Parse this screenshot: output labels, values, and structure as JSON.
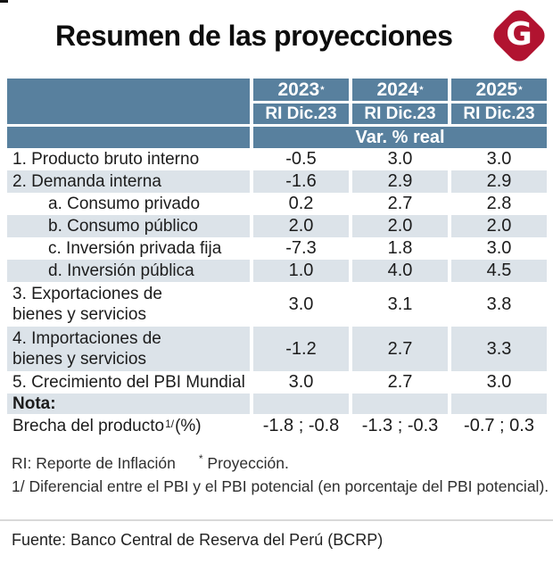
{
  "title": "Resumen de las proyecciones",
  "logo": {
    "letter": "G"
  },
  "colors": {
    "header_bg": "#58809E",
    "row_alt_bg": "#DCE3E9",
    "logo_red": "#B11330",
    "header_text": "#FFFFFF"
  },
  "table": {
    "columns": [
      {
        "year": "2023",
        "mark": "*",
        "edition": "RI Dic.23"
      },
      {
        "year": "2024",
        "mark": "*",
        "edition": "RI Dic.23"
      },
      {
        "year": "2025",
        "mark": "*",
        "edition": "RI Dic.23"
      }
    ],
    "unit_row": "Var. % real",
    "rows": [
      {
        "label": "1. Producto bruto interno",
        "values": [
          "-0.5",
          "3.0",
          "3.0"
        ],
        "alt": false
      },
      {
        "label": "2. Demanda interna",
        "values": [
          "-1.6",
          "2.9",
          "2.9"
        ],
        "alt": true
      },
      {
        "label": "a. Consumo privado",
        "values": [
          "0.2",
          "2.7",
          "2.8"
        ],
        "alt": false,
        "indent": true
      },
      {
        "label": "b. Consumo público",
        "values": [
          "2.0",
          "2.0",
          "2.0"
        ],
        "alt": true,
        "indent": true
      },
      {
        "label": "c. Inversión privada fija",
        "values": [
          "-7.3",
          "1.8",
          "3.0"
        ],
        "alt": false,
        "indent": true
      },
      {
        "label": "d. Inversión pública",
        "values": [
          "1.0",
          "4.0",
          "4.5"
        ],
        "alt": true,
        "indent": true
      },
      {
        "label": "3. Exportaciones de\nbienes y servicios",
        "values": [
          "3.0",
          "3.1",
          "3.8"
        ],
        "alt": false,
        "tall": true
      },
      {
        "label": "4. Importaciones de\nbienes y servicios",
        "values": [
          "-1.2",
          "2.7",
          "3.3"
        ],
        "alt": true,
        "tall": true
      },
      {
        "label": "5. Crecimiento del PBI Mundial",
        "values": [
          "3.0",
          "2.7",
          "3.0"
        ],
        "alt": false
      },
      {
        "label": "Nota:",
        "values": [
          "",
          "",
          ""
        ],
        "alt": true,
        "bold": true
      },
      {
        "label": "Brecha del producto",
        "label_sup": "1/",
        "label_after": " (%)",
        "values": [
          "-1.8 ; -0.8",
          "-1.3 ; -0.3",
          "-0.7 ; 0.3"
        ],
        "alt": false
      }
    ]
  },
  "footnotes": {
    "ri": "RI: Reporte de Inflación",
    "projection_mark": "*",
    "projection_text": "Proyección.",
    "gap_note": "1/ Diferencial entre el PBI y el PBI potencial (en porcentaje del PBI potencial)."
  },
  "source": "Fuente: Banco Central de Reserva del Perú (BCRP)",
  "chart_data": {
    "type": "table",
    "title": "Resumen de las proyecciones",
    "unit": "Var. % real",
    "columns": [
      "2023* RI Dic.23",
      "2024* RI Dic.23",
      "2025* RI Dic.23"
    ],
    "rows": [
      {
        "label": "1. Producto bruto interno",
        "values": [
          -0.5,
          3.0,
          3.0
        ]
      },
      {
        "label": "2. Demanda interna",
        "values": [
          -1.6,
          2.9,
          2.9
        ]
      },
      {
        "label": "a. Consumo privado",
        "values": [
          0.2,
          2.7,
          2.8
        ]
      },
      {
        "label": "b. Consumo público",
        "values": [
          2.0,
          2.0,
          2.0
        ]
      },
      {
        "label": "c. Inversión privada fija",
        "values": [
          -7.3,
          1.8,
          3.0
        ]
      },
      {
        "label": "d. Inversión pública",
        "values": [
          1.0,
          4.0,
          4.5
        ]
      },
      {
        "label": "3. Exportaciones de bienes y servicios",
        "values": [
          3.0,
          3.1,
          3.8
        ]
      },
      {
        "label": "4. Importaciones de bienes y servicios",
        "values": [
          -1.2,
          2.7,
          3.3
        ]
      },
      {
        "label": "5. Crecimiento del PBI Mundial",
        "values": [
          3.0,
          2.7,
          3.0
        ]
      },
      {
        "label": "Brecha del producto 1/ (%)",
        "values": [
          "-1.8 ; -0.8",
          "-1.3 ; -0.3",
          "-0.7 ; 0.3"
        ]
      }
    ],
    "notes": [
      "RI: Reporte de Inflación",
      "* Proyección.",
      "1/ Diferencial entre el PBI y el PBI potencial (en porcentaje del PBI potencial)."
    ],
    "source": "Banco Central de Reserva del Perú (BCRP)"
  }
}
